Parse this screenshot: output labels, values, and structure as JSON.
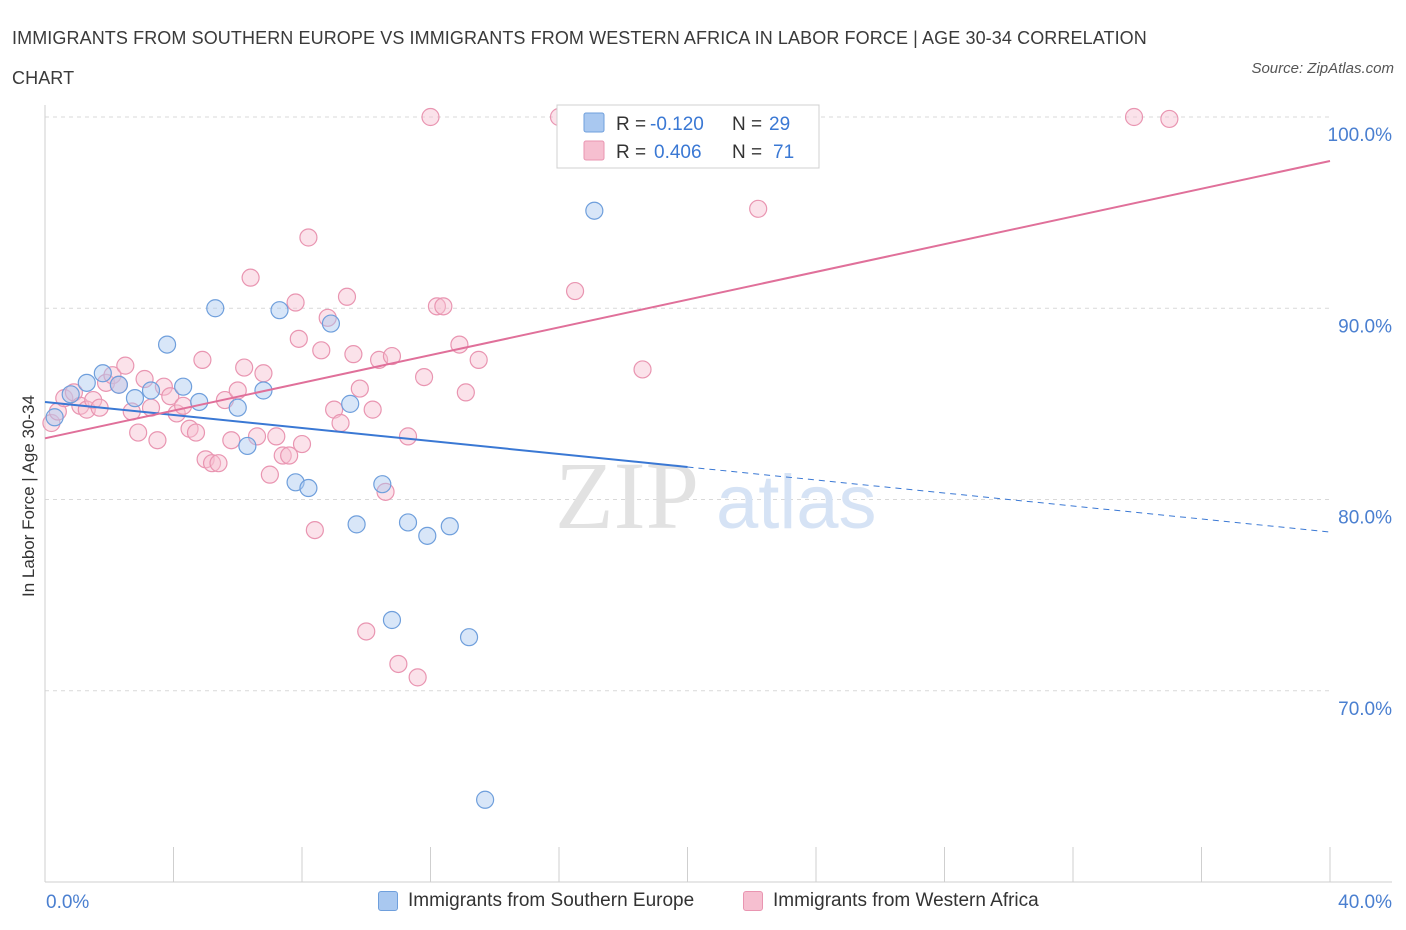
{
  "header": {
    "title": "IMMIGRANTS FROM SOUTHERN EUROPE VS IMMIGRANTS FROM WESTERN AFRICA IN LABOR FORCE | AGE 30-34 CORRELATION CHART",
    "source": "Source: ZipAtlas.com"
  },
  "watermark": {
    "zip": "ZIP",
    "atlas": "atlas"
  },
  "stats": [
    {
      "r_label": "R =",
      "r_value": "-0.120",
      "n_label": "N =",
      "n_value": "29"
    },
    {
      "r_label": "R =",
      "r_value": "0.406",
      "n_label": "N =",
      "n_value": "71"
    }
  ],
  "legend": {
    "items": [
      {
        "label": "Immigrants from Southern Europe"
      },
      {
        "label": "Immigrants from Western Africa"
      }
    ]
  },
  "colors": {
    "blue_fill": "#a9c8f0",
    "blue_stroke": "#6f9fdc",
    "blue_line": "#3a78d4",
    "pink_fill": "#f6bfd0",
    "pink_stroke": "#e995b1",
    "pink_line": "#e0709a",
    "axis_label": "#4a7fd0",
    "grid": "#d9d9d9"
  },
  "chart_data": {
    "type": "scatter",
    "title": "IMMIGRANTS FROM SOUTHERN EUROPE VS IMMIGRANTS FROM WESTERN AFRICA IN LABOR FORCE | AGE 30-34 CORRELATION CHART",
    "xlabel": "",
    "ylabel": "In Labor Force | Age 30-34",
    "xlim": [
      0,
      40
    ],
    "ylim": [
      60,
      100
    ],
    "x_tick_labels": [
      "0.0%",
      "40.0%"
    ],
    "y_ticks": [
      70,
      80,
      90,
      100
    ],
    "y_tick_labels": [
      "70.0%",
      "80.0%",
      "90.0%",
      "100.0%"
    ],
    "grid": true,
    "legend_position": "bottom",
    "series": [
      {
        "name": "Immigrants from Southern Europe",
        "color": "#6f9fdc",
        "points": [
          [
            0.3,
            84.3
          ],
          [
            0.8,
            85.5
          ],
          [
            1.3,
            86.1
          ],
          [
            1.8,
            86.6
          ],
          [
            2.3,
            86.0
          ],
          [
            2.8,
            85.3
          ],
          [
            3.3,
            85.7
          ],
          [
            3.8,
            88.1
          ],
          [
            4.3,
            85.9
          ],
          [
            4.8,
            85.1
          ],
          [
            5.3,
            90.0
          ],
          [
            6.0,
            84.8
          ],
          [
            6.3,
            82.8
          ],
          [
            6.8,
            85.7
          ],
          [
            7.3,
            89.9
          ],
          [
            7.8,
            80.9
          ],
          [
            8.2,
            80.6
          ],
          [
            8.9,
            89.2
          ],
          [
            9.5,
            85.0
          ],
          [
            9.7,
            78.7
          ],
          [
            10.5,
            80.8
          ],
          [
            10.8,
            73.7
          ],
          [
            11.3,
            78.8
          ],
          [
            11.9,
            78.1
          ],
          [
            12.6,
            78.6
          ],
          [
            13.2,
            72.8
          ],
          [
            13.7,
            64.3
          ],
          [
            17.1,
            95.1
          ],
          [
            19.9,
            100.0
          ]
        ],
        "trend": {
          "x": [
            0,
            20
          ],
          "y": [
            85.1,
            81.7
          ],
          "dashed_extension": {
            "x": [
              20,
              40
            ],
            "y": [
              81.7,
              78.3
            ]
          }
        },
        "r": -0.12,
        "n": 29
      },
      {
        "name": "Immigrants from Western Africa",
        "color": "#e995b1",
        "points": [
          [
            0.2,
            84.0
          ],
          [
            0.4,
            84.6
          ],
          [
            0.6,
            85.3
          ],
          [
            0.9,
            85.6
          ],
          [
            1.1,
            84.9
          ],
          [
            1.3,
            84.7
          ],
          [
            1.5,
            85.2
          ],
          [
            1.7,
            84.8
          ],
          [
            1.9,
            86.1
          ],
          [
            2.1,
            86.5
          ],
          [
            2.3,
            86.0
          ],
          [
            2.5,
            87.0
          ],
          [
            2.7,
            84.6
          ],
          [
            2.9,
            83.5
          ],
          [
            3.1,
            86.3
          ],
          [
            3.3,
            84.8
          ],
          [
            3.5,
            83.1
          ],
          [
            3.7,
            85.9
          ],
          [
            3.9,
            85.4
          ],
          [
            4.1,
            84.5
          ],
          [
            4.3,
            84.9
          ],
          [
            4.5,
            83.7
          ],
          [
            4.7,
            83.5
          ],
          [
            4.9,
            87.3
          ],
          [
            5.0,
            82.1
          ],
          [
            5.2,
            81.9
          ],
          [
            5.4,
            81.9
          ],
          [
            5.6,
            85.2
          ],
          [
            5.8,
            83.1
          ],
          [
            6.0,
            85.7
          ],
          [
            6.2,
            86.9
          ],
          [
            6.4,
            91.6
          ],
          [
            6.6,
            83.3
          ],
          [
            6.8,
            86.6
          ],
          [
            7.0,
            81.3
          ],
          [
            7.2,
            83.3
          ],
          [
            7.4,
            82.3
          ],
          [
            7.6,
            82.3
          ],
          [
            7.8,
            90.3
          ],
          [
            7.9,
            88.4
          ],
          [
            8.0,
            82.9
          ],
          [
            8.2,
            93.7
          ],
          [
            8.4,
            78.4
          ],
          [
            8.6,
            87.8
          ],
          [
            8.8,
            89.5
          ],
          [
            9.0,
            84.7
          ],
          [
            9.2,
            84.0
          ],
          [
            9.4,
            90.6
          ],
          [
            9.6,
            87.6
          ],
          [
            9.8,
            85.8
          ],
          [
            10.0,
            73.1
          ],
          [
            10.2,
            84.7
          ],
          [
            10.4,
            87.3
          ],
          [
            10.6,
            80.4
          ],
          [
            10.8,
            87.5
          ],
          [
            11.0,
            71.4
          ],
          [
            11.3,
            83.3
          ],
          [
            11.6,
            70.7
          ],
          [
            11.8,
            86.4
          ],
          [
            12.0,
            100.0
          ],
          [
            12.2,
            90.1
          ],
          [
            12.4,
            90.1
          ],
          [
            12.9,
            88.1
          ],
          [
            13.1,
            85.6
          ],
          [
            13.5,
            87.3
          ],
          [
            16.0,
            100.0
          ],
          [
            16.5,
            90.9
          ],
          [
            18.6,
            86.8
          ],
          [
            22.2,
            95.2
          ],
          [
            33.9,
            100.0
          ],
          [
            35.0,
            99.9
          ]
        ],
        "trend": {
          "x": [
            0,
            40
          ],
          "y": [
            83.2,
            97.7
          ]
        },
        "r": 0.406,
        "n": 71
      }
    ]
  }
}
